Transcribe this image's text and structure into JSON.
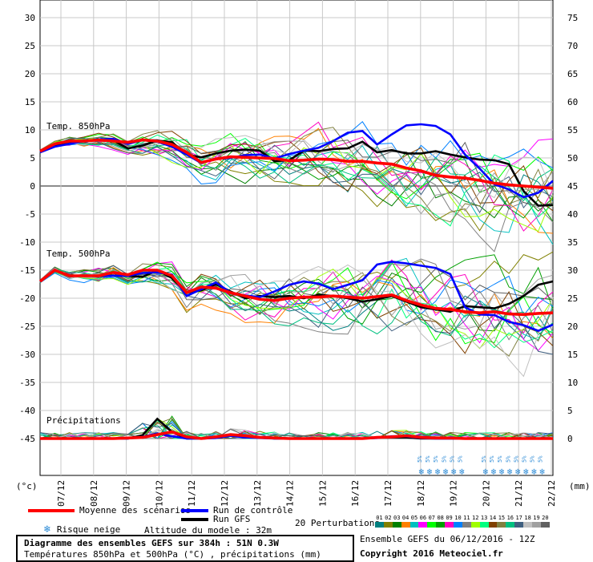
{
  "chart_data": {
    "type": "line",
    "left_axis": {
      "ticks": [
        "30",
        "25",
        "20",
        "15",
        "10",
        "5",
        "0",
        "-5",
        "-10",
        "-15",
        "-20",
        "-25",
        "-30",
        "-35",
        "-40",
        "-45"
      ],
      "unit": "(°c)"
    },
    "right_axis": {
      "ticks": [
        "75",
        "70",
        "65",
        "60",
        "55",
        "50",
        "45",
        "40",
        "35",
        "30",
        "25",
        "20",
        "15",
        "10",
        "5",
        "0"
      ],
      "unit": "(mm)"
    },
    "dates": [
      "07/12",
      "08/12",
      "09/12",
      "10/12",
      "11/12",
      "12/12",
      "13/12",
      "14/12",
      "15/12",
      "16/12",
      "17/12",
      "18/12",
      "19/12",
      "20/12",
      "21/12",
      "22/12"
    ],
    "panels": {
      "t850_label": "Temp. 850hPa",
      "t500_label": "Temp. 500hPa",
      "precip_label": "Précipitations"
    },
    "snow_risk_label": "5%",
    "series": [
      {
        "name": "Moyenne des scénarios",
        "color": "#ff0000",
        "t850": [
          6.2,
          7.5,
          8,
          8,
          8.2,
          8,
          7.8,
          8.2,
          8,
          7.4,
          6,
          4.2,
          4.8,
          5.2,
          5.1,
          5,
          4.9,
          4.5,
          4.6,
          4.8,
          4.7,
          4.4,
          4.4,
          4.1,
          3.9,
          3.2,
          2.7,
          1.9,
          1.6,
          1.4,
          1.0,
          0.5,
          0.2,
          0.0,
          -0.2,
          -0.4
        ],
        "t500": [
          -17,
          -15,
          -16,
          -16,
          -16,
          -15.4,
          -15.8,
          -15,
          -15,
          -16,
          -19,
          -18,
          -18.2,
          -19,
          -19.6,
          -20.2,
          -20.4,
          -20,
          -19.8,
          -19.8,
          -19.6,
          -19.8,
          -20,
          -19.7,
          -19.4,
          -20.4,
          -21.2,
          -21.8,
          -22,
          -22.4,
          -22.6,
          -22.4,
          -22.8,
          -22.9,
          -22.7,
          -22.6
        ],
        "precip": [
          0,
          0,
          0,
          0,
          0,
          0,
          0.1,
          0.2,
          0.7,
          1.2,
          0.3,
          0,
          0.3,
          0.7,
          0.5,
          0.2,
          0.1,
          0,
          0,
          0,
          0,
          0,
          0,
          0.2,
          0.3,
          0.5,
          0.2,
          0.1,
          0.1,
          0,
          0,
          0,
          0,
          0,
          0,
          0
        ]
      },
      {
        "name": "Run de contrôle",
        "color": "#0000ff",
        "t850": [
          6,
          7,
          7.5,
          8,
          8.3,
          8.4,
          7.5,
          8.2,
          7.9,
          7,
          5.6,
          4.1,
          4.8,
          5,
          5.5,
          5.6,
          4.9,
          5.7,
          6.3,
          6.8,
          8,
          9.5,
          9.8,
          7.4,
          9.2,
          10.8,
          11,
          10.7,
          9.2,
          5.6,
          3.1,
          0.3,
          -0.6,
          -2,
          -1.2,
          0.9
        ],
        "t500": [
          -17,
          -15,
          -16,
          -16,
          -16,
          -16,
          -16,
          -15.5,
          -15.4,
          -15.8,
          -19.6,
          -18.4,
          -17.2,
          -19,
          -19.5,
          -19.8,
          -18.8,
          -17.6,
          -17,
          -17.4,
          -18.4,
          -17.6,
          -16.8,
          -14,
          -13.5,
          -13.8,
          -14.2,
          -14.6,
          -15.7,
          -21.6,
          -22.9,
          -23,
          -24.2,
          -24.8,
          -25.8,
          -24.7
        ],
        "precip": [
          0,
          0,
          0,
          0,
          0,
          0,
          0,
          0.3,
          0.9,
          0.4,
          0,
          0,
          0.1,
          0.5,
          0.2,
          0.1,
          0,
          0,
          0,
          0,
          0,
          0,
          0,
          0.1,
          0.4,
          0.4,
          0.1,
          0,
          0,
          0,
          0,
          0,
          0,
          0,
          0,
          0
        ]
      },
      {
        "name": "Run GFS",
        "color": "#000000",
        "t850": [
          6.2,
          7.3,
          7.9,
          8,
          8.3,
          8.1,
          6.7,
          7.2,
          8.1,
          7.8,
          5.6,
          5.1,
          5.8,
          6.3,
          6.5,
          6.3,
          4.4,
          4.6,
          6.3,
          6.2,
          6.6,
          6.7,
          7.9,
          6.0,
          6.4,
          5.8,
          5.8,
          6.2,
          5.6,
          5.1,
          4.7,
          4.6,
          3.9,
          -0.9,
          -3.5,
          -3.4
        ],
        "t500": [
          -17,
          -15,
          -16,
          -16,
          -16,
          -16,
          -16,
          -16.2,
          -15,
          -16.4,
          -19,
          -18.6,
          -17.5,
          -18.8,
          -20,
          -19.6,
          -19.8,
          -19.6,
          -20,
          -19.4,
          -19.6,
          -20,
          -20.6,
          -20.2,
          -19.6,
          -20.6,
          -21.6,
          -22,
          -22.4,
          -21.4,
          -21.6,
          -21.8,
          -21,
          -19.6,
          -17.6,
          -17
        ],
        "precip": [
          0,
          0,
          0,
          0,
          0,
          0,
          0,
          0.6,
          3.5,
          1.2,
          0,
          0,
          0.2,
          0.5,
          0.3,
          0.2,
          0,
          0,
          0,
          0,
          0,
          0,
          0,
          0.2,
          0.2,
          0.2,
          0,
          0,
          0,
          0,
          0,
          0,
          0,
          0,
          0,
          0
        ]
      }
    ],
    "ylim_left": [
      -45,
      30
    ],
    "ylim_right": [
      0,
      75
    ],
    "grid": true
  },
  "legend": {
    "moyenne": "Moyenne des scénarios",
    "controle": "Run de contrôle",
    "gfs": "Run GFS",
    "neige": "Risque neige",
    "altitude": "Altitude du modele : 32m",
    "perturbations": "20 Perturbations",
    "pert_numbers": [
      "01",
      "02",
      "03",
      "04",
      "05",
      "06",
      "07",
      "08",
      "09",
      "10",
      "11",
      "12",
      "13",
      "14",
      "15",
      "16",
      "17",
      "18",
      "19",
      "20"
    ],
    "pert_colors": [
      "#008080",
      "#808000",
      "#008000",
      "#ff8000",
      "#00c0c0",
      "#ff00ff",
      "#00ff00",
      "#00a000",
      "#ff00c0",
      "#0080ff",
      "#808080",
      "#a0ff00",
      "#00ff80",
      "#804000",
      "#808040",
      "#00c080",
      "#406080",
      "#c0c0c0",
      "#a0a0a0",
      "#606060"
    ],
    "colors": {
      "moyenne": "#ff0000",
      "controle": "#0000ff",
      "gfs": "#000000",
      "snow": "#2a8ad6"
    }
  },
  "info": {
    "title": "Diagramme des ensembles GEFS sur 384h : 51N 0.3W",
    "subtitle": "Températures 850hPa et 500hPa (°C) , précipitations (mm)",
    "run": "Ensemble GEFS du 06/12/2016 - 12Z",
    "copyright": "Copyright 2016 Meteociel.fr"
  }
}
